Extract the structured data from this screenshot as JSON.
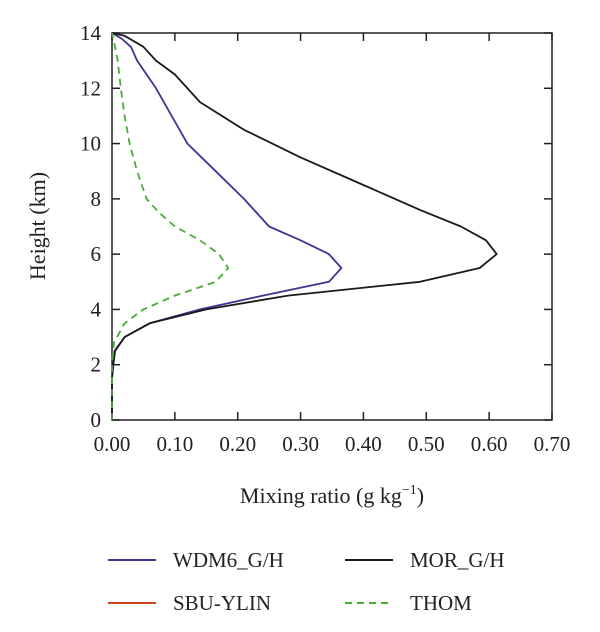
{
  "chart_data": {
    "type": "line",
    "xlabel": "Mixing ratio (g kg",
    "xlabel_sup": "−1",
    "xlabel_close": ")",
    "ylabel": "Height (km)",
    "xlim": [
      0,
      0.7
    ],
    "ylim": [
      0,
      14
    ],
    "x_ticks": [
      0,
      0.1,
      0.2,
      0.3,
      0.4,
      0.5,
      0.6,
      0.7
    ],
    "x_tick_labels": [
      "0.00",
      "0.10",
      "0.20",
      "0.30",
      "0.40",
      "0.50",
      "0.60",
      "0.70"
    ],
    "y_ticks": [
      0,
      2,
      4,
      6,
      8,
      10,
      12,
      14
    ],
    "y_tick_labels": [
      "0",
      "2",
      "4",
      "6",
      "8",
      "10",
      "12",
      "14"
    ],
    "grid": false,
    "legend_position": "bottom",
    "series": [
      {
        "name": "WDM6_G/H",
        "color": "#3b3594",
        "dash": "solid",
        "points": [
          [
            0.0,
            0.0
          ],
          [
            0.0,
            1.5
          ],
          [
            0.002,
            2.0
          ],
          [
            0.004,
            2.5
          ],
          [
            0.02,
            3.0
          ],
          [
            0.06,
            3.5
          ],
          [
            0.14,
            4.0
          ],
          [
            0.24,
            4.5
          ],
          [
            0.345,
            5.0
          ],
          [
            0.365,
            5.5
          ],
          [
            0.345,
            6.0
          ],
          [
            0.3,
            6.5
          ],
          [
            0.25,
            7.0
          ],
          [
            0.21,
            8.0
          ],
          [
            0.165,
            9.0
          ],
          [
            0.12,
            10.0
          ],
          [
            0.095,
            11.0
          ],
          [
            0.07,
            12.0
          ],
          [
            0.055,
            12.5
          ],
          [
            0.04,
            13.0
          ],
          [
            0.03,
            13.5
          ],
          [
            0.015,
            13.8
          ],
          [
            0.0,
            14.0
          ]
        ]
      },
      {
        "name": "MOR_G/H",
        "color": "#1a1a1a",
        "dash": "solid",
        "points": [
          [
            0.0,
            0.0
          ],
          [
            0.0,
            1.5
          ],
          [
            0.002,
            2.0
          ],
          [
            0.005,
            2.5
          ],
          [
            0.02,
            3.0
          ],
          [
            0.06,
            3.5
          ],
          [
            0.15,
            4.0
          ],
          [
            0.28,
            4.5
          ],
          [
            0.49,
            5.0
          ],
          [
            0.585,
            5.5
          ],
          [
            0.612,
            6.0
          ],
          [
            0.595,
            6.5
          ],
          [
            0.555,
            7.0
          ],
          [
            0.49,
            7.6
          ],
          [
            0.4,
            8.5
          ],
          [
            0.3,
            9.5
          ],
          [
            0.21,
            10.5
          ],
          [
            0.14,
            11.5
          ],
          [
            0.1,
            12.5
          ],
          [
            0.07,
            13.0
          ],
          [
            0.05,
            13.5
          ],
          [
            0.02,
            13.9
          ],
          [
            0.0,
            14.0
          ]
        ]
      },
      {
        "name": "SBU-YLIN",
        "color": "#c8431e",
        "dash": "solid",
        "points": []
      },
      {
        "name": "THOM",
        "color": "#4aaa3a",
        "dash": "dashed",
        "points": [
          [
            0.0,
            0.0
          ],
          [
            0.0,
            2.0
          ],
          [
            0.003,
            2.8
          ],
          [
            0.02,
            3.5
          ],
          [
            0.05,
            4.0
          ],
          [
            0.1,
            4.5
          ],
          [
            0.165,
            5.0
          ],
          [
            0.185,
            5.5
          ],
          [
            0.17,
            6.0
          ],
          [
            0.14,
            6.5
          ],
          [
            0.1,
            7.0
          ],
          [
            0.075,
            7.5
          ],
          [
            0.055,
            8.0
          ],
          [
            0.04,
            9.0
          ],
          [
            0.028,
            10.0
          ],
          [
            0.02,
            11.0
          ],
          [
            0.014,
            12.0
          ],
          [
            0.009,
            13.0
          ],
          [
            0.003,
            13.7
          ],
          [
            0.0,
            14.0
          ]
        ]
      }
    ]
  }
}
